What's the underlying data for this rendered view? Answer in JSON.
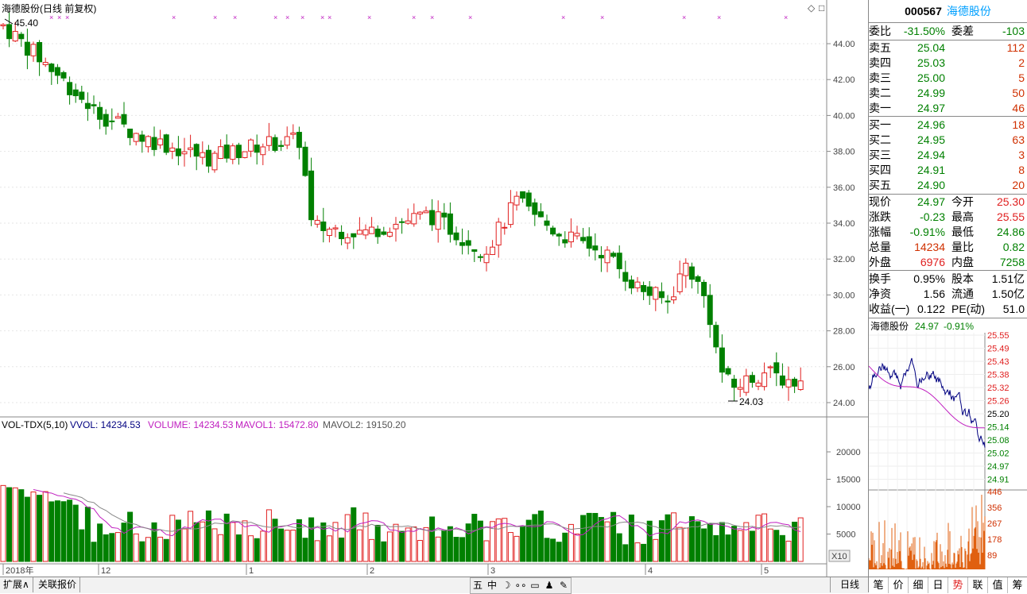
{
  "main": {
    "title": "海德股份(日线 前复权)",
    "price_axis": [
      "44.00",
      "42.00",
      "40.00",
      "38.00",
      "36.00",
      "34.00",
      "32.00",
      "30.00",
      "28.00",
      "26.00",
      "24.00"
    ],
    "high_label": "45.40",
    "low_label": "24.03",
    "vol_title": "VOL-TDX(5,10)",
    "vvol": "VVOL: 14234.53",
    "volume": "VOLUME: 14234.53",
    "mavol1": "MAVOL1: 15472.80",
    "mavol2": "MAVOL2: 19150.20",
    "vol_axis": [
      "20000",
      "15000",
      "10000",
      "5000"
    ],
    "vol_unit": "X10",
    "x_axis": [
      "2018年",
      "12",
      "1",
      "2",
      "3",
      "4",
      "5"
    ]
  },
  "quote": {
    "code": "000567",
    "name": "海德股份",
    "weibi_label": "委比",
    "weibi": "-31.50%",
    "weicha_label": "委差",
    "weicha": "-103",
    "sells": [
      {
        "label": "卖五",
        "price": "25.04",
        "vol": "112"
      },
      {
        "label": "卖四",
        "price": "25.03",
        "vol": "2"
      },
      {
        "label": "卖三",
        "price": "25.00",
        "vol": "5"
      },
      {
        "label": "卖二",
        "price": "24.99",
        "vol": "50"
      },
      {
        "label": "卖一",
        "price": "24.97",
        "vol": "46"
      }
    ],
    "buys": [
      {
        "label": "买一",
        "price": "24.96",
        "vol": "18"
      },
      {
        "label": "买二",
        "price": "24.95",
        "vol": "63"
      },
      {
        "label": "买三",
        "price": "24.94",
        "vol": "3"
      },
      {
        "label": "买四",
        "price": "24.91",
        "vol": "8"
      },
      {
        "label": "买五",
        "price": "24.90",
        "vol": "20"
      }
    ],
    "stats": [
      {
        "l1": "现价",
        "v1": "24.97",
        "c1": "g",
        "l2": "今开",
        "v2": "25.30",
        "c2": "r"
      },
      {
        "l1": "涨跌",
        "v1": "-0.23",
        "c1": "g",
        "l2": "最高",
        "v2": "25.55",
        "c2": "r"
      },
      {
        "l1": "涨幅",
        "v1": "-0.91%",
        "c1": "g",
        "l2": "最低",
        "v2": "24.86",
        "c2": "g"
      },
      {
        "l1": "总量",
        "v1": "14234",
        "c1": "rb",
        "l2": "量比",
        "v2": "0.82",
        "c2": "g"
      },
      {
        "l1": "外盘",
        "v1": "6976",
        "c1": "r",
        "l2": "内盘",
        "v2": "7258",
        "c2": "g"
      }
    ],
    "fund": [
      {
        "l1": "换手",
        "v1": "0.95%",
        "l2": "股本",
        "v2": "1.51亿"
      },
      {
        "l1": "净资",
        "v1": "1.56",
        "l2": "流通",
        "v2": "1.50亿"
      },
      {
        "l1": "收益(一)",
        "v1": "0.122",
        "l2": "PE(动)",
        "v2": "51.0"
      }
    ]
  },
  "intraday": {
    "name": "海德股份",
    "price": "24.97",
    "pct": "-0.91%",
    "price_axis": [
      "25.55",
      "25.49",
      "25.43",
      "25.38",
      "25.32",
      "25.26",
      "25.20",
      "25.14",
      "25.08",
      "25.02",
      "24.97",
      "24.91"
    ],
    "vol_axis": [
      "446",
      "356",
      "267",
      "178",
      "89"
    ]
  },
  "tabs": [
    "笔",
    "价",
    "细",
    "日",
    "势",
    "联",
    "值",
    "筹"
  ],
  "active_tab": "势",
  "bottom": {
    "tab1": "扩展∧",
    "tab2": "关联报价",
    "tools": [
      "五",
      "中",
      "☽",
      "∘∘",
      "▭",
      "♟",
      "✎"
    ],
    "day": "日线"
  },
  "colors": {
    "up": "#e02020",
    "down": "#008000",
    "ma": "#c020c0",
    "accent": "#00a0ff"
  }
}
